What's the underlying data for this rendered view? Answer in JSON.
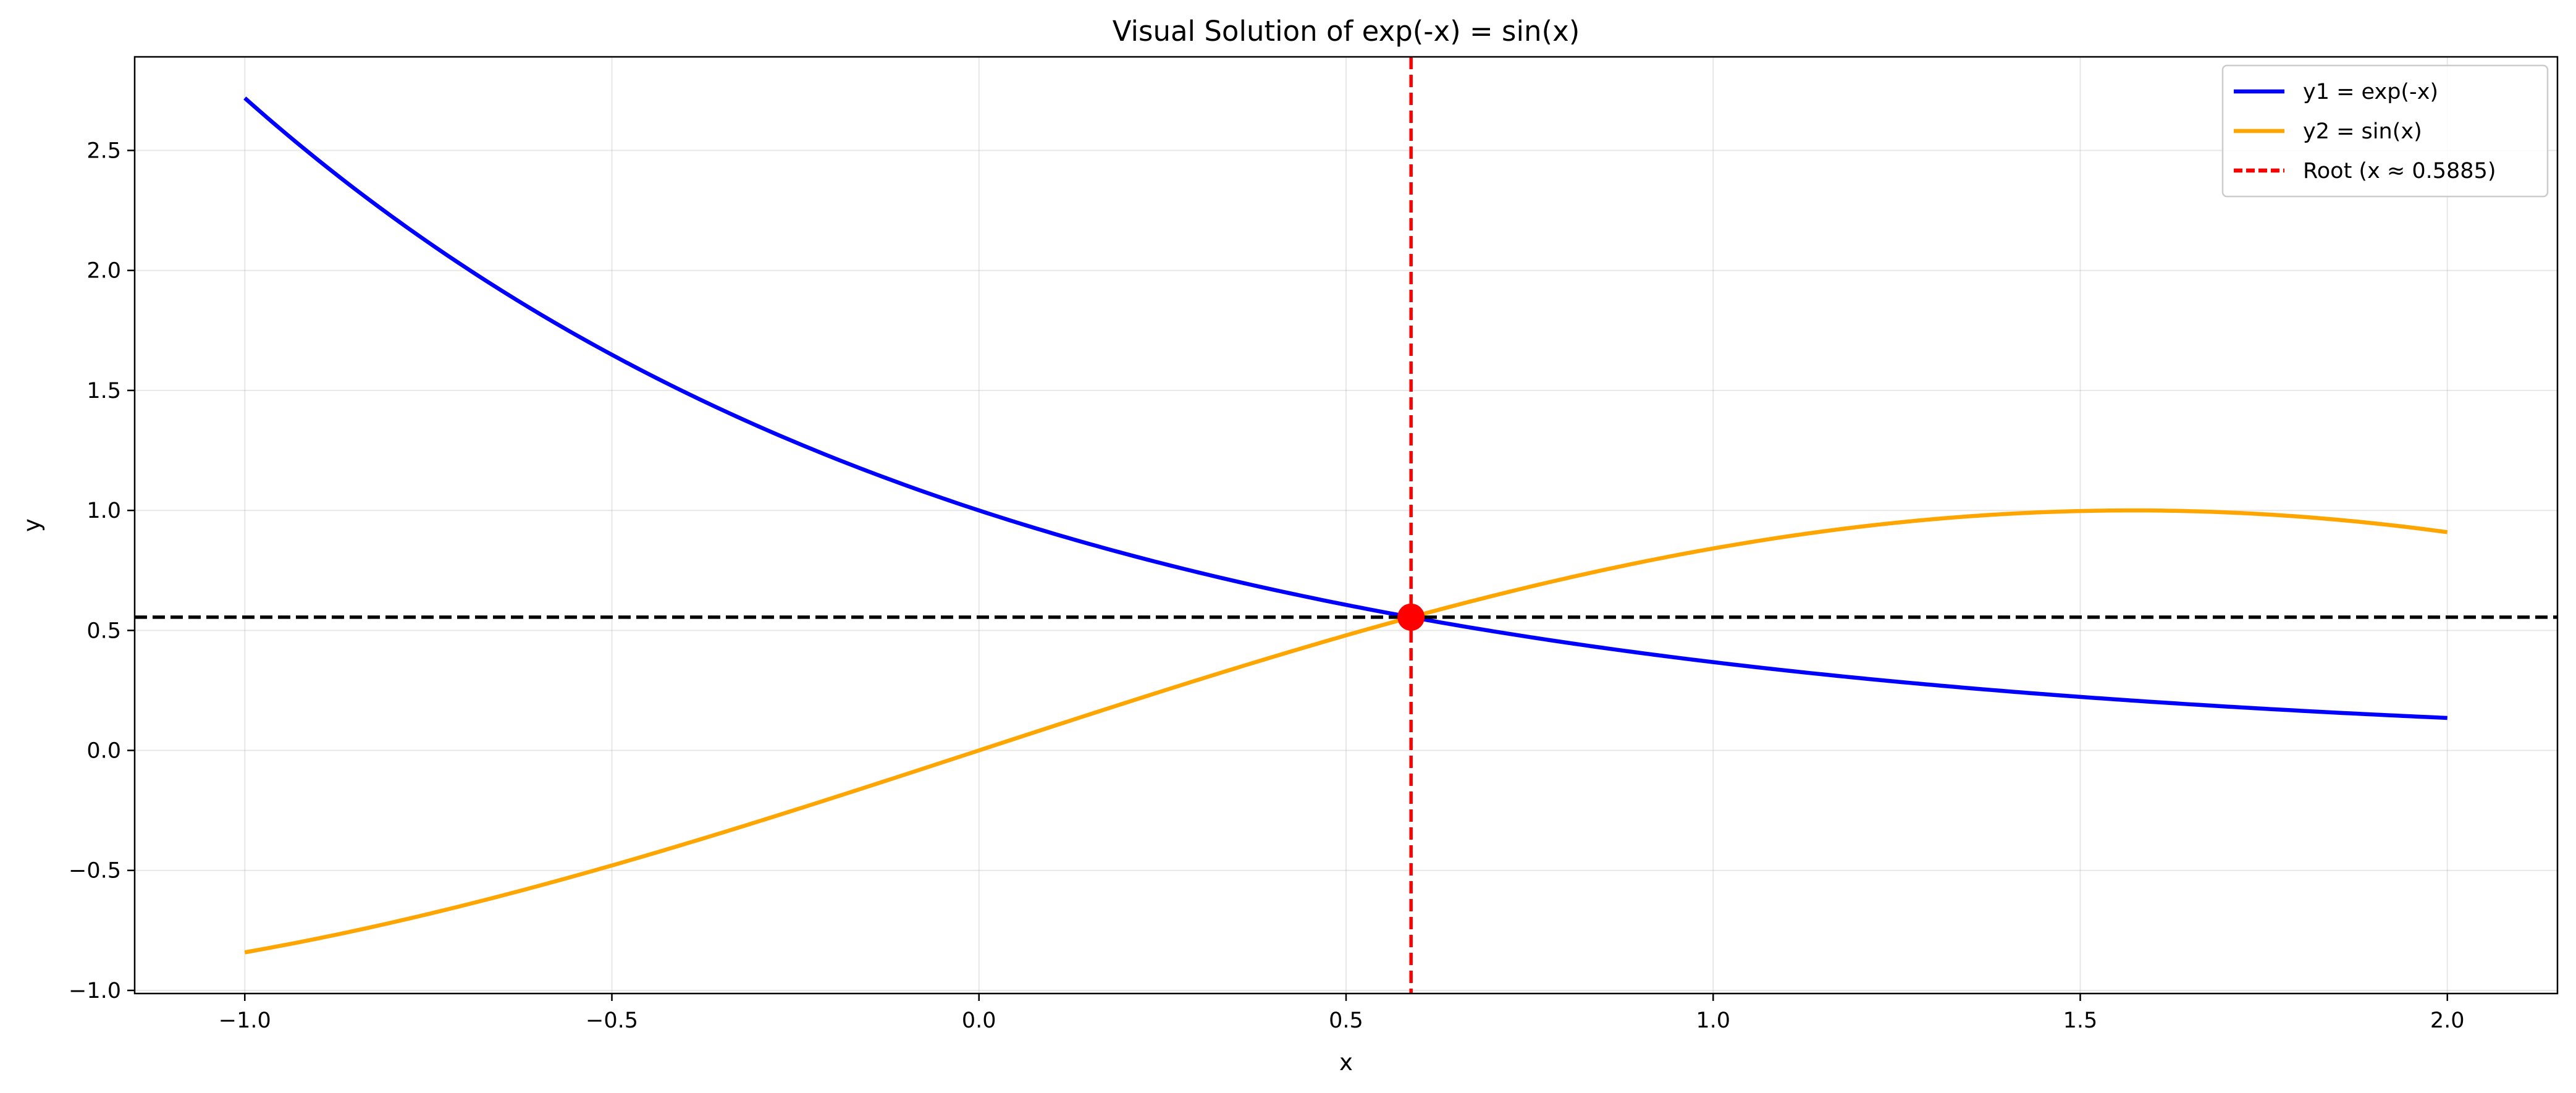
{
  "chart_data": {
    "type": "line",
    "title": "Visual Solution of exp(-x) = sin(x)",
    "xlabel": "x",
    "ylabel": "y",
    "xlim": [
      -1.15,
      2.15
    ],
    "ylim": [
      -1.013,
      2.89
    ],
    "grid": true,
    "legend_position": "top-right",
    "x_ticks": [
      -1.0,
      -0.5,
      0.0,
      0.5,
      1.0,
      1.5,
      2.0
    ],
    "x_tick_labels": [
      "−1.0",
      "−0.5",
      "0.0",
      "0.5",
      "1.0",
      "1.5",
      "2.0"
    ],
    "y_ticks": [
      -1.0,
      -0.5,
      0.0,
      0.5,
      1.0,
      1.5,
      2.0,
      2.5
    ],
    "y_tick_labels": [
      "−1.0",
      "−0.5",
      "0.0",
      "0.5",
      "1.0",
      "1.5",
      "2.0",
      "2.5"
    ],
    "series": [
      {
        "name": "y1 = exp(-x)",
        "color": "#0000ff",
        "style": "solid",
        "x": [
          -1.0,
          -0.9,
          -0.8,
          -0.7,
          -0.6,
          -0.5,
          -0.4,
          -0.3,
          -0.2,
          -0.1,
          0.0,
          0.1,
          0.2,
          0.3,
          0.4,
          0.5,
          0.6,
          0.7,
          0.8,
          0.9,
          1.0,
          1.1,
          1.2,
          1.3,
          1.4,
          1.5,
          1.6,
          1.7,
          1.8,
          1.9,
          2.0
        ],
        "y": [
          2.718,
          2.46,
          2.226,
          2.014,
          1.822,
          1.649,
          1.492,
          1.35,
          1.221,
          1.105,
          1.0,
          0.905,
          0.819,
          0.741,
          0.67,
          0.607,
          0.549,
          0.497,
          0.449,
          0.407,
          0.368,
          0.333,
          0.301,
          0.273,
          0.247,
          0.223,
          0.202,
          0.183,
          0.165,
          0.15,
          0.135
        ]
      },
      {
        "name": "y2 = sin(x)",
        "color": "#ffa500",
        "style": "solid",
        "x": [
          -1.0,
          -0.9,
          -0.8,
          -0.7,
          -0.6,
          -0.5,
          -0.4,
          -0.3,
          -0.2,
          -0.1,
          0.0,
          0.1,
          0.2,
          0.3,
          0.4,
          0.5,
          0.6,
          0.7,
          0.8,
          0.9,
          1.0,
          1.1,
          1.2,
          1.3,
          1.4,
          1.5,
          1.6,
          1.7,
          1.8,
          1.9,
          2.0
        ],
        "y": [
          -0.841,
          -0.783,
          -0.717,
          -0.644,
          -0.565,
          -0.479,
          -0.389,
          -0.296,
          -0.199,
          -0.1,
          0.0,
          0.1,
          0.199,
          0.296,
          0.389,
          0.479,
          0.565,
          0.644,
          0.717,
          0.783,
          0.841,
          0.891,
          0.932,
          0.964,
          0.985,
          0.997,
          1.0,
          0.992,
          0.974,
          0.946,
          0.909
        ]
      }
    ],
    "root_line": {
      "name": "Root (x ≈ 0.5885)",
      "x": 0.5885,
      "color": "#ff0000",
      "style": "dashed"
    },
    "horizontal_line": {
      "y": 0.5552,
      "color": "#000000",
      "style": "dashed"
    },
    "intersection_point": {
      "x": 0.5885,
      "y": 0.5552,
      "color": "#ff0000"
    }
  }
}
